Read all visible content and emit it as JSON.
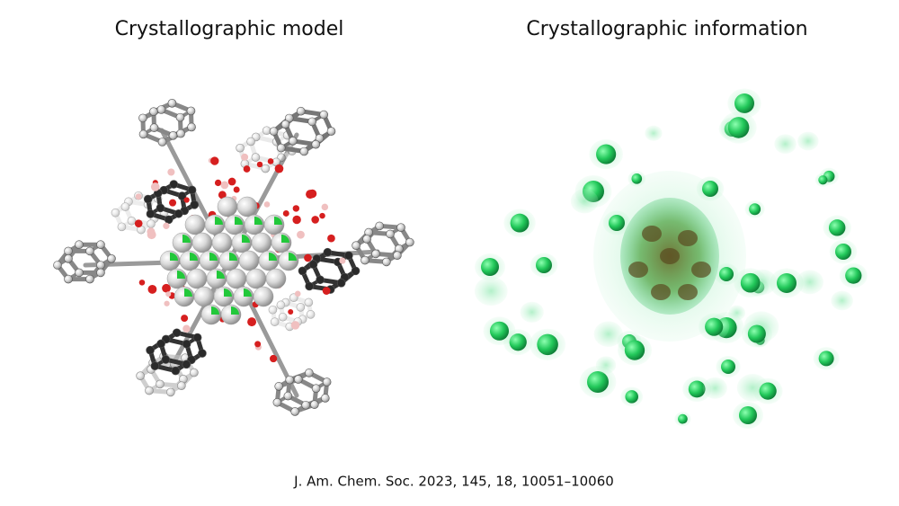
{
  "left": {
    "title": "Crystallographic model"
  },
  "right": {
    "title": "Crystallographic information"
  },
  "citation": "J. Am. Chem. Soc. 2023, 145, 18, 10051–10060"
}
